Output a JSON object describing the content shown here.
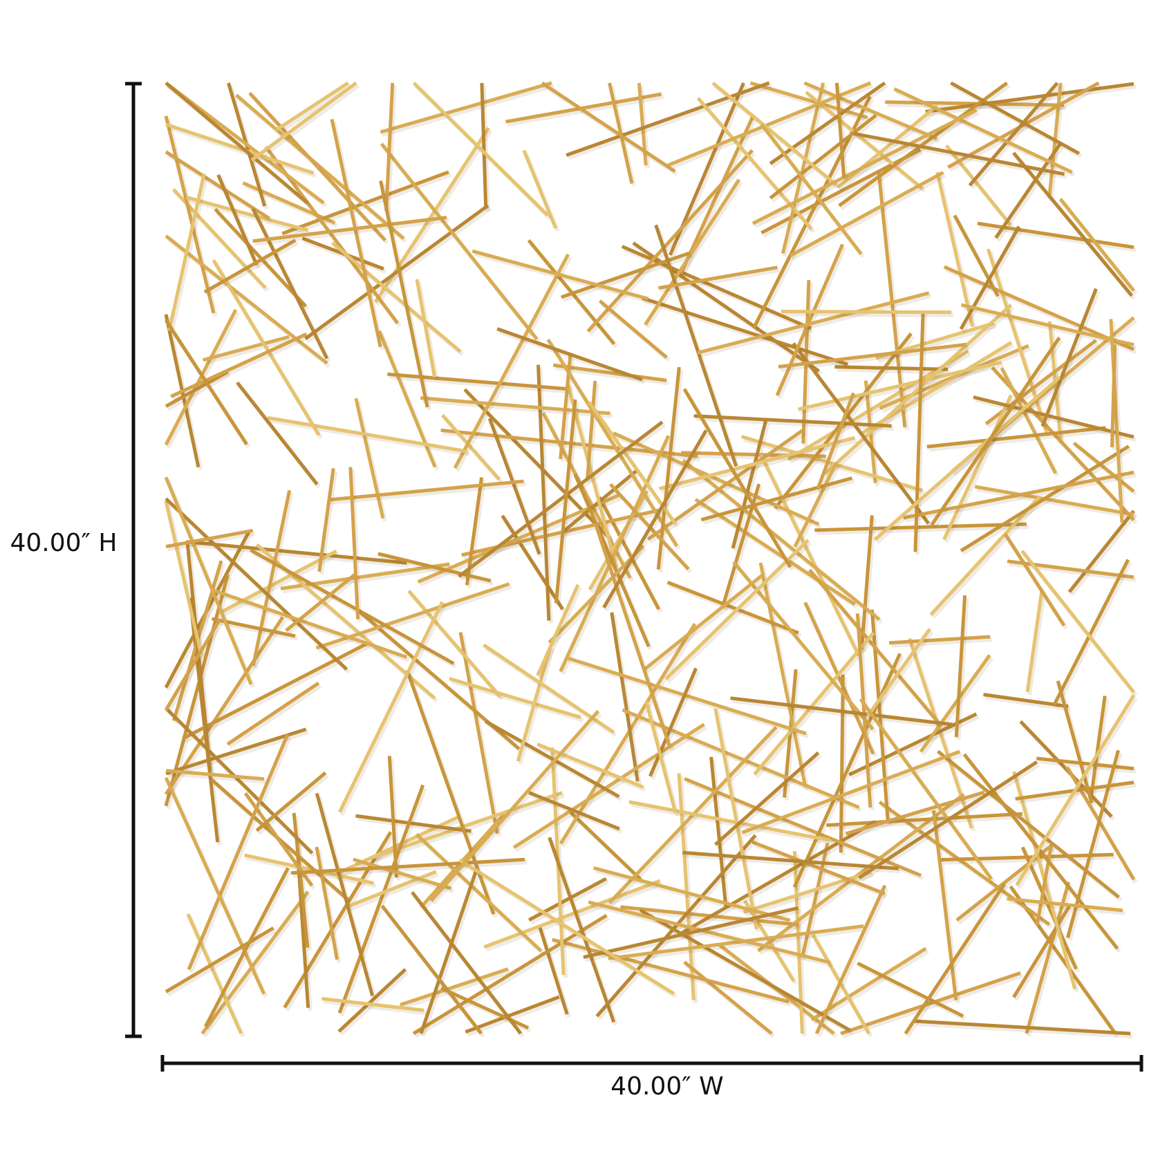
{
  "dimensions": {
    "height_label": "40.00″ H",
    "width_label": "40.00″ W"
  }
}
